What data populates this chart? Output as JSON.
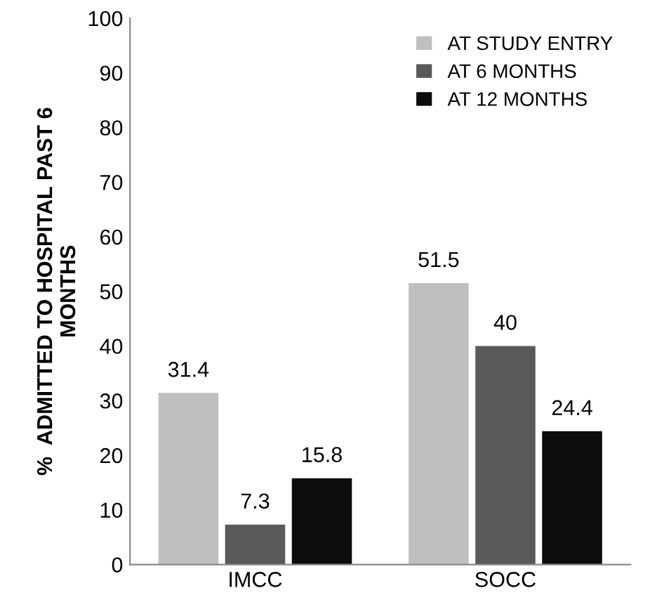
{
  "chart_data": {
    "type": "bar",
    "ylabel": "%  ADMITTED TO HOSPITAL PAST 6\nMONTHS",
    "categories": [
      "IMCC",
      "SOCC"
    ],
    "series": [
      {
        "name": "AT STUDY ENTRY",
        "color": "#bfbfbf",
        "values": [
          31.4,
          51.5
        ]
      },
      {
        "name": "AT 6 MONTHS",
        "color": "#595959",
        "values": [
          7.3,
          40
        ]
      },
      {
        "name": "AT 12 MONTHS",
        "color": "#0d0d0d",
        "values": [
          15.8,
          24.4
        ]
      }
    ],
    "ylim": [
      0,
      100
    ],
    "yticks": [
      0,
      10,
      20,
      30,
      40,
      50,
      60,
      70,
      80,
      90,
      100
    ],
    "grid": false,
    "legend": "top right",
    "data_labels": true
  }
}
